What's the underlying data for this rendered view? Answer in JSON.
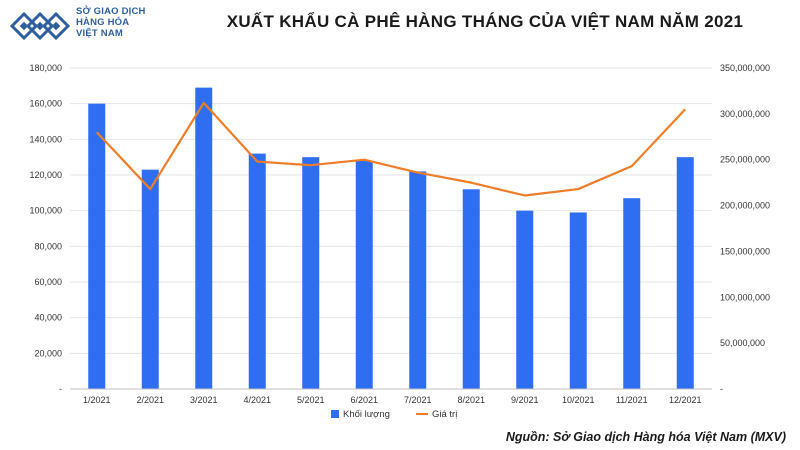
{
  "header": {
    "logo_lines": [
      "SỞ GIAO DỊCH",
      "HÀNG HÓA",
      "VIỆT NAM"
    ]
  },
  "colors": {
    "bar": "#2f6ef0",
    "line": "#ee7d2a",
    "grid": "#e6e6e6",
    "logo": "#2f5f9e"
  },
  "footer": {
    "source": "Nguồn: Sở Giao dịch Hàng hóa Việt Nam (MXV)"
  },
  "chart_data": {
    "type": "bar",
    "title": "XUẤT KHẨU CÀ PHÊ HÀNG THÁNG CỦA VIỆT NAM NĂM 2021",
    "categories": [
      "1/2021",
      "2/2021",
      "3/2021",
      "4/2021",
      "5/2021",
      "6/2021",
      "7/2021",
      "8/2021",
      "9/2021",
      "10/2021",
      "11/2021",
      "12/2021"
    ],
    "series": [
      {
        "name": "Khối lượng",
        "type": "bar",
        "axis": "left",
        "values": [
          160000,
          123000,
          169000,
          132000,
          130000,
          128000,
          122000,
          112000,
          100000,
          99000,
          107000,
          130000
        ]
      },
      {
        "name": "Giá trị",
        "type": "line",
        "axis": "right",
        "values": [
          280000000,
          218000000,
          312000000,
          248000000,
          244000000,
          250000000,
          236000000,
          225000000,
          211000000,
          218000000,
          243000000,
          305000000
        ]
      }
    ],
    "y_left": {
      "min": 0,
      "max": 180000,
      "step": 20000,
      "tick_labels": [
        "-",
        "20,000",
        "40,000",
        "60,000",
        "80,000",
        "100,000",
        "120,000",
        "140,000",
        "160,000",
        "180,000"
      ]
    },
    "y_right": {
      "min": 0,
      "max": 350000000,
      "step": 50000000,
      "tick_labels": [
        "-",
        "50,000,000",
        "100,000,000",
        "150,000,000",
        "200,000,000",
        "250,000,000",
        "300,000,000",
        "350,000,000"
      ]
    },
    "grid": true,
    "legend": "bottom-center"
  }
}
